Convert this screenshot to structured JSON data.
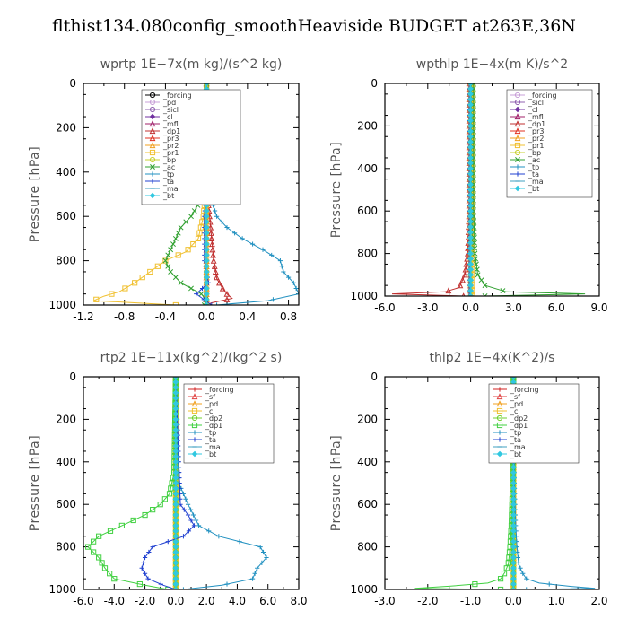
{
  "title": "flthist134.080config_smoothHeaviside  BUDGET at263E,36N",
  "chart_data": [
    {
      "type": "line",
      "title": "wprtp   1E−7x(m kg)/(s^2 kg)",
      "ylabel": "Pressure [hPa]",
      "xlim": [
        -1.2,
        0.9
      ],
      "ylim": [
        1000,
        0
      ],
      "xticks": [
        "-1.2",
        "-0.8",
        "-0.4",
        "0.0",
        "0.4",
        "0.8"
      ],
      "xtick_values": [
        -1.2,
        -0.8,
        -0.4,
        0.0,
        0.4,
        0.8
      ],
      "yticks": [
        "0",
        "200",
        "400",
        "600",
        "800",
        "1000"
      ],
      "legend_position": "top-right",
      "series": [
        {
          "name": "_forcing",
          "color": "#000000",
          "marker": "circle",
          "p": [
            0,
            200,
            400,
            600,
            700,
            800,
            900,
            960,
            1000
          ],
          "x": [
            0.0,
            0.0,
            0.0,
            0.0,
            0.0,
            0.0,
            0.0,
            0.0,
            0.0
          ]
        },
        {
          "name": "_pd",
          "color": "#c8a0d8",
          "marker": "circle",
          "p": [
            0,
            500,
            1000
          ],
          "x": [
            0.0,
            0.0,
            0.0
          ]
        },
        {
          "name": "_sicl",
          "color": "#9060b0",
          "marker": "circle",
          "p": [
            0,
            500,
            1000
          ],
          "x": [
            0.0,
            0.0,
            0.0
          ]
        },
        {
          "name": "_cl",
          "color": "#7030a0",
          "marker": "diamond",
          "p": [
            0,
            500,
            1000
          ],
          "x": [
            0.0,
            0.0,
            0.0
          ]
        },
        {
          "name": "_mfl",
          "color": "#a0206a",
          "marker": "triangle",
          "p": [
            0,
            500,
            1000
          ],
          "x": [
            0.0,
            0.0,
            0.0
          ]
        },
        {
          "name": "_dp1",
          "color": "#c03030",
          "marker": "triangle",
          "p": [
            0,
            500,
            600,
            700,
            800,
            880,
            920,
            950,
            970,
            990,
            1000
          ],
          "x": [
            0.0,
            0.01,
            0.03,
            0.05,
            0.07,
            0.1,
            0.15,
            0.2,
            0.25,
            0.05,
            0.0
          ]
        },
        {
          "name": "_pr3",
          "color": "#e03020",
          "marker": "triangle",
          "p": [
            0,
            500,
            1000
          ],
          "x": [
            0.0,
            0.0,
            0.0
          ]
        },
        {
          "name": "_pr2",
          "color": "#f0a020",
          "marker": "triangle",
          "p": [
            0,
            500,
            1000
          ],
          "x": [
            0.0,
            0.0,
            0.0
          ]
        },
        {
          "name": "_pr1",
          "color": "#f0c030",
          "marker": "square",
          "p": [
            0,
            500,
            600,
            700,
            760,
            800,
            850,
            900,
            940,
            960,
            980,
            1000
          ],
          "x": [
            0.0,
            -0.01,
            -0.03,
            -0.08,
            -0.2,
            -0.4,
            -0.55,
            -0.7,
            -0.85,
            -1.0,
            -1.1,
            -0.3
          ]
        },
        {
          "name": "_bp",
          "color": "#c8d030",
          "marker": "circle",
          "p": [
            0,
            500,
            1000
          ],
          "x": [
            0.0,
            0.0,
            0.0
          ]
        },
        {
          "name": "_ac",
          "color": "#30a030",
          "marker": "cross",
          "p": [
            0,
            400,
            500,
            600,
            650,
            700,
            750,
            800,
            850,
            900,
            950,
            980,
            1000
          ],
          "x": [
            0.0,
            -0.01,
            -0.02,
            -0.15,
            -0.25,
            -0.3,
            -0.35,
            -0.4,
            -0.35,
            -0.25,
            -0.05,
            0.0,
            -0.02
          ]
        },
        {
          "name": "_tp",
          "color": "#2090c0",
          "marker": "plus",
          "p": [
            0,
            500,
            600,
            650,
            700,
            750,
            800,
            850,
            900,
            950,
            980,
            1000
          ],
          "x": [
            0.0,
            0.03,
            0.1,
            0.2,
            0.35,
            0.55,
            0.72,
            0.75,
            0.85,
            0.9,
            0.6,
            0.1
          ]
        },
        {
          "name": "_ta",
          "color": "#2040d0",
          "marker": "plus",
          "p": [
            0,
            500,
            600,
            700,
            800,
            900,
            950,
            1000
          ],
          "x": [
            0.0,
            0.0,
            -0.02,
            -0.02,
            -0.02,
            0.02,
            -0.1,
            0.05
          ]
        },
        {
          "name": "_ma",
          "color": "#40a0c0",
          "marker": "dash",
          "p": [
            0,
            500,
            1000
          ],
          "x": [
            0.0,
            0.0,
            0.0
          ]
        },
        {
          "name": "_bt",
          "color": "#30c8e0",
          "marker": "diamond",
          "p": [
            0,
            500,
            1000
          ],
          "x": [
            0.0,
            0.0,
            0.0
          ]
        }
      ]
    },
    {
      "type": "line",
      "title": "wpthlp   1E−4x(m K)/s^2",
      "ylabel": "Pressure [hPa]",
      "xlim": [
        -6.0,
        9.0
      ],
      "ylim": [
        1000,
        0
      ],
      "xticks": [
        "-6.0",
        "-3.0",
        "0.0",
        "3.0",
        "6.0",
        "9.0"
      ],
      "xtick_values": [
        -6.0,
        -3.0,
        0.0,
        3.0,
        6.0,
        9.0
      ],
      "yticks": [
        "0",
        "200",
        "400",
        "600",
        "800",
        "1000"
      ],
      "legend_position": "top-right",
      "series": [
        {
          "name": "_forcing",
          "color": "#c8a0d8",
          "marker": "circle",
          "p": [
            0,
            500,
            1000
          ],
          "x": [
            0.0,
            0.0,
            0.0
          ]
        },
        {
          "name": "_sicl",
          "color": "#9060b0",
          "marker": "circle",
          "p": [
            0,
            500,
            1000
          ],
          "x": [
            0.0,
            0.0,
            0.0
          ]
        },
        {
          "name": "_cl",
          "color": "#7030a0",
          "marker": "diamond",
          "p": [
            0,
            500,
            1000
          ],
          "x": [
            0.0,
            0.0,
            0.0
          ]
        },
        {
          "name": "_mfl",
          "color": "#a0206a",
          "marker": "triangle",
          "p": [
            0,
            500,
            1000
          ],
          "x": [
            0.0,
            0.0,
            0.0
          ]
        },
        {
          "name": "_dp1",
          "color": "#c03030",
          "marker": "triangle",
          "p": [
            0,
            600,
            800,
            900,
            960,
            980,
            990,
            1000
          ],
          "x": [
            -0.1,
            -0.1,
            -0.2,
            -0.4,
            -0.8,
            -1.8,
            -5.5,
            -0.5
          ]
        },
        {
          "name": "_pr3",
          "color": "#e03020",
          "marker": "triangle",
          "p": [
            0,
            500,
            1000
          ],
          "x": [
            0.0,
            0.0,
            0.0
          ]
        },
        {
          "name": "_pr2",
          "color": "#f0a020",
          "marker": "triangle",
          "p": [
            0,
            500,
            1000
          ],
          "x": [
            0.0,
            0.0,
            0.0
          ]
        },
        {
          "name": "_pr1",
          "color": "#f0c030",
          "marker": "square",
          "p": [
            0,
            500,
            1000
          ],
          "x": [
            0.1,
            0.1,
            0.1
          ]
        },
        {
          "name": "_bp",
          "color": "#c8d030",
          "marker": "circle",
          "p": [
            0,
            500,
            1000
          ],
          "x": [
            0.0,
            0.0,
            0.0
          ]
        },
        {
          "name": "_ac",
          "color": "#30a030",
          "marker": "cross",
          "p": [
            0,
            600,
            800,
            900,
            950,
            980,
            990,
            1000
          ],
          "x": [
            0.2,
            0.2,
            0.3,
            0.5,
            1.0,
            2.5,
            8.0,
            1.0
          ]
        },
        {
          "name": "_tp",
          "color": "#2090c0",
          "marker": "plus",
          "p": [
            0,
            500,
            1000
          ],
          "x": [
            0.0,
            0.0,
            0.0
          ]
        },
        {
          "name": "_ta",
          "color": "#2040d0",
          "marker": "plus",
          "p": [
            0,
            500,
            1000
          ],
          "x": [
            -0.1,
            -0.1,
            -0.1
          ]
        },
        {
          "name": "_ma",
          "color": "#40a0c0",
          "marker": "dash",
          "p": [
            0,
            500,
            1000
          ],
          "x": [
            0.0,
            0.0,
            0.0
          ]
        },
        {
          "name": "_bt",
          "color": "#30c8e0",
          "marker": "diamond",
          "p": [
            0,
            500,
            1000
          ],
          "x": [
            0.0,
            0.0,
            0.0
          ]
        }
      ]
    },
    {
      "type": "line",
      "title": "rtp2   1E−11x(kg^2)/(kg^2 s)",
      "ylabel": "Pressure [hPa]",
      "xlim": [
        -6.0,
        8.0
      ],
      "ylim": [
        1000,
        0
      ],
      "xticks": [
        "-6.0",
        "-4.0",
        "-2.0",
        "0.0",
        "2.0",
        "4.0",
        "6.0",
        "8.0"
      ],
      "xtick_values": [
        -6.0,
        -4.0,
        -2.0,
        0.0,
        2.0,
        4.0,
        6.0,
        8.0
      ],
      "yticks": [
        "0",
        "200",
        "400",
        "600",
        "800",
        "1000"
      ],
      "legend_position": "top-right",
      "series": [
        {
          "name": "_forcing",
          "color": "#d02020",
          "marker": "plus",
          "p": [
            0,
            200,
            400,
            600,
            800,
            900,
            1000
          ],
          "x": [
            0.0,
            0.0,
            0.0,
            0.0,
            0.0,
            0.0,
            0.0
          ]
        },
        {
          "name": "_sf",
          "color": "#e04040",
          "marker": "triangle",
          "p": [
            0,
            500,
            1000
          ],
          "x": [
            0.0,
            0.0,
            0.0
          ]
        },
        {
          "name": "_pd",
          "color": "#f0a020",
          "marker": "triangle",
          "p": [
            0,
            500,
            1000
          ],
          "x": [
            0.0,
            0.0,
            0.0
          ]
        },
        {
          "name": "_cl",
          "color": "#f0c030",
          "marker": "square",
          "p": [
            0,
            500,
            1000
          ],
          "x": [
            0.0,
            0.0,
            0.0
          ]
        },
        {
          "name": "_dp2",
          "color": "#70d030",
          "marker": "circle",
          "p": [
            0,
            500,
            1000
          ],
          "x": [
            0.0,
            0.0,
            0.0
          ]
        },
        {
          "name": "_dp1",
          "color": "#40d040",
          "marker": "square",
          "p": [
            0,
            450,
            550,
            600,
            650,
            700,
            750,
            800,
            850,
            900,
            950,
            980,
            1000
          ],
          "x": [
            0.0,
            -0.1,
            -0.4,
            -1.0,
            -2.0,
            -3.5,
            -5.0,
            -5.7,
            -5.0,
            -4.6,
            -4.0,
            -2.0,
            -0.5
          ]
        },
        {
          "name": "_tp",
          "color": "#2090c0",
          "marker": "plus",
          "p": [
            0,
            500,
            600,
            700,
            750,
            800,
            850,
            900,
            950,
            980,
            1000
          ],
          "x": [
            0.0,
            0.2,
            0.8,
            1.5,
            2.8,
            5.5,
            5.9,
            5.3,
            5.0,
            3.0,
            0.5
          ]
        },
        {
          "name": "_ta",
          "color": "#2040d0",
          "marker": "plus",
          "p": [
            0,
            600,
            650,
            700,
            750,
            800,
            850,
            900,
            950,
            980,
            1000
          ],
          "x": [
            0.0,
            0.3,
            0.8,
            1.2,
            0.5,
            -1.5,
            -2.0,
            -2.2,
            -1.8,
            -0.8,
            0.0
          ]
        },
        {
          "name": "_ma",
          "color": "#40a0c0",
          "marker": "dash",
          "p": [
            0,
            500,
            1000
          ],
          "x": [
            0.0,
            0.0,
            0.0
          ]
        },
        {
          "name": "_bt",
          "color": "#30c8e0",
          "marker": "diamond",
          "p": [
            0,
            500,
            1000
          ],
          "x": [
            0.0,
            0.0,
            0.0
          ]
        }
      ]
    },
    {
      "type": "line",
      "title": "thlp2   1E−4x(K^2)/s",
      "ylabel": "Pressure [hPa]",
      "xlim": [
        -3.0,
        2.0
      ],
      "ylim": [
        1000,
        0
      ],
      "xticks": [
        "-3.0",
        "-2.0",
        "-1.0",
        "0.0",
        "1.0",
        "2.0"
      ],
      "xtick_values": [
        -3.0,
        -2.0,
        -1.0,
        0.0,
        1.0,
        2.0
      ],
      "yticks": [
        "0",
        "200",
        "400",
        "600",
        "800",
        "1000"
      ],
      "legend_position": "top-right",
      "series": [
        {
          "name": "_forcing",
          "color": "#d02020",
          "marker": "plus",
          "p": [
            0,
            200,
            400,
            600,
            800,
            900,
            1000
          ],
          "x": [
            0.0,
            0.0,
            0.0,
            0.0,
            0.0,
            0.0,
            0.0
          ]
        },
        {
          "name": "_sf",
          "color": "#e04040",
          "marker": "triangle",
          "p": [
            0,
            500,
            1000
          ],
          "x": [
            0.0,
            0.0,
            0.0
          ]
        },
        {
          "name": "_pd",
          "color": "#f0a020",
          "marker": "triangle",
          "p": [
            0,
            500,
            1000
          ],
          "x": [
            0.0,
            0.0,
            0.0
          ]
        },
        {
          "name": "_cl",
          "color": "#f0c030",
          "marker": "square",
          "p": [
            0,
            500,
            1000
          ],
          "x": [
            0.0,
            0.0,
            0.0
          ]
        },
        {
          "name": "_dp2",
          "color": "#70d030",
          "marker": "circle",
          "p": [
            0,
            500,
            1000
          ],
          "x": [
            0.0,
            0.0,
            0.0
          ]
        },
        {
          "name": "_dp1",
          "color": "#40d040",
          "marker": "square",
          "p": [
            0,
            500,
            700,
            800,
            880,
            920,
            950,
            970,
            985,
            995,
            1000
          ],
          "x": [
            0.0,
            -0.02,
            -0.05,
            -0.08,
            -0.12,
            -0.2,
            -0.3,
            -0.6,
            -1.5,
            -2.3,
            -0.3
          ]
        },
        {
          "name": "_tp",
          "color": "#2090c0",
          "marker": "plus",
          "p": [
            0,
            500,
            700,
            800,
            880,
            920,
            950,
            970,
            985,
            995,
            1000
          ],
          "x": [
            0.0,
            0.02,
            0.05,
            0.08,
            0.12,
            0.2,
            0.3,
            0.6,
            1.3,
            1.9,
            0.3
          ]
        },
        {
          "name": "_ta",
          "color": "#2040d0",
          "marker": "plus",
          "p": [
            0,
            500,
            1000
          ],
          "x": [
            0.0,
            0.0,
            0.0
          ]
        },
        {
          "name": "_ma",
          "color": "#40a0c0",
          "marker": "dash",
          "p": [
            0,
            500,
            1000
          ],
          "x": [
            0.0,
            0.0,
            0.0
          ]
        },
        {
          "name": "_bt",
          "color": "#30c8e0",
          "marker": "diamond",
          "p": [
            0,
            500,
            1000
          ],
          "x": [
            0.0,
            0.0,
            0.0
          ]
        }
      ]
    }
  ]
}
